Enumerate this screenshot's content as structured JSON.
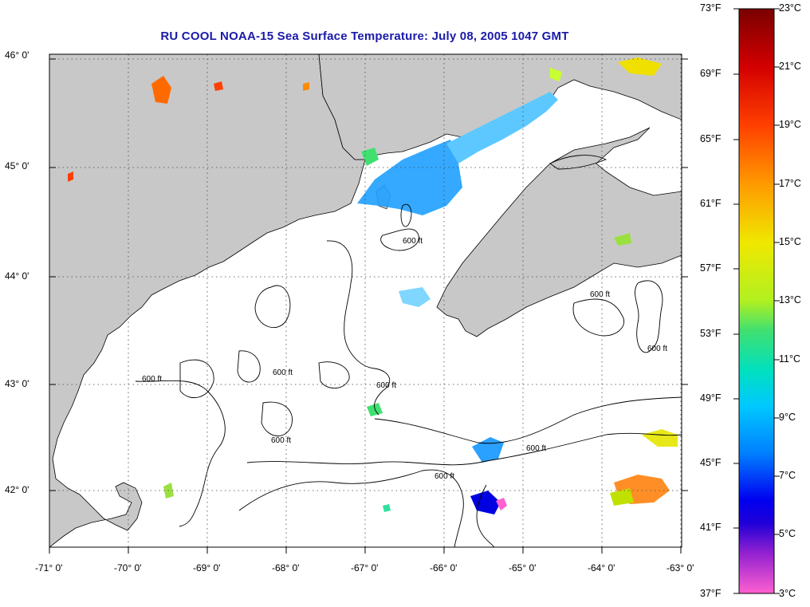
{
  "title": "RU COOL  NOAA-15  Sea Surface Temperature:  July 08, 2005 1047 GMT",
  "lat_labels": [
    "46° 0'",
    "45° 0'",
    "44° 0'",
    "43° 0'",
    "42° 0'"
  ],
  "lon_labels": [
    "-71° 0'",
    "-70° 0'",
    "-69° 0'",
    "-68° 0'",
    "-67° 0'",
    "-66° 0'",
    "-65° 0'",
    "-64° 0'",
    "-63° 0'"
  ],
  "colorbar": {
    "fahrenheit": [
      "73°F",
      "69°F",
      "65°F",
      "61°F",
      "57°F",
      "53°F",
      "49°F",
      "45°F",
      "41°F",
      "37°F"
    ],
    "celsius": [
      "23°C",
      "21°C",
      "19°C",
      "17°C",
      "15°C",
      "13°C",
      "11°C",
      "9°C",
      "7°C",
      "5°C",
      "3°C"
    ]
  },
  "contour_label": "600 ft",
  "colors": {
    "land": "#c8c8c8",
    "title": "#1a1aa8"
  }
}
